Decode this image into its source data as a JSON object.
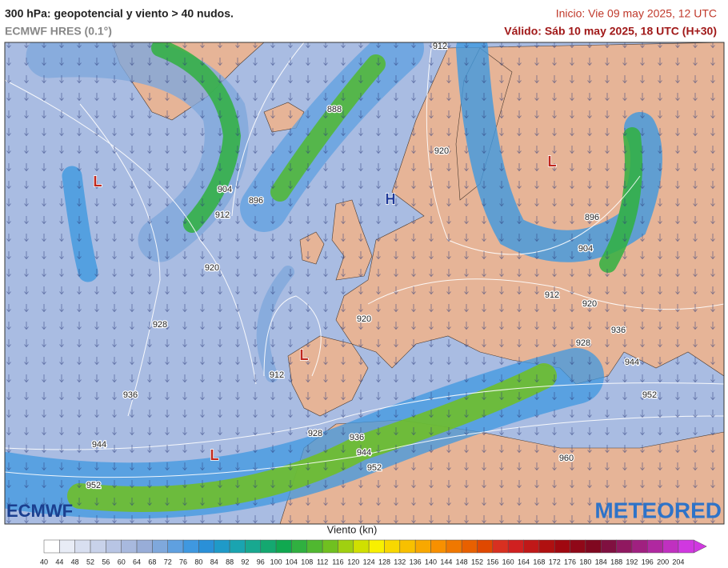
{
  "header": {
    "title": "300 hPa: geopotencial y viento > 40 nudos.",
    "model": "ECMWF HRES (0.1°)",
    "init": "Inicio: Vie 09 may 2025, 12 UTC",
    "valid": "Válido: Sáb 10 may 2025, 18 UTC (H+30)"
  },
  "map": {
    "contour_labels": [
      912,
      888,
      904,
      896,
      912,
      920,
      896,
      904,
      920,
      912,
      920,
      928,
      920,
      936,
      928,
      944,
      912,
      936,
      952,
      928,
      936,
      944,
      952,
      944,
      960,
      952
    ],
    "systems": [
      "L",
      "H",
      "L",
      "L",
      "L"
    ]
  },
  "logos": {
    "left": "ECMWF",
    "right": "METEORED"
  },
  "colorbar": {
    "title": "Viento (kn)",
    "ticks": [
      40,
      44,
      48,
      52,
      56,
      60,
      64,
      68,
      72,
      76,
      80,
      84,
      88,
      92,
      96,
      100,
      104,
      108,
      112,
      116,
      120,
      124,
      128,
      132,
      136,
      140,
      144,
      148,
      152,
      156,
      160,
      164,
      168,
      172,
      176,
      180,
      184,
      188,
      192,
      196,
      200,
      204
    ],
    "colors": [
      "#ffffff",
      "#e8ecf6",
      "#d8dff0",
      "#c8d2ea",
      "#b8c5e4",
      "#a8b9de",
      "#98add8",
      "#7fa8dc",
      "#5fa0e0",
      "#3f98e0",
      "#2a90d8",
      "#1f9ac8",
      "#1aa4b0",
      "#18a890",
      "#14a870",
      "#10a850",
      "#30b040",
      "#50b830",
      "#70c020",
      "#a0d010",
      "#d0e000",
      "#f8f000",
      "#f8d800",
      "#f8c000",
      "#f8a800",
      "#f89000",
      "#f07800",
      "#e86000",
      "#e04800",
      "#d83020",
      "#d02020",
      "#c01818",
      "#b01010",
      "#a00810",
      "#900818",
      "#800820",
      "#801040",
      "#901860",
      "#a02080",
      "#b028a0",
      "#c030c0",
      "#d038e0"
    ]
  }
}
